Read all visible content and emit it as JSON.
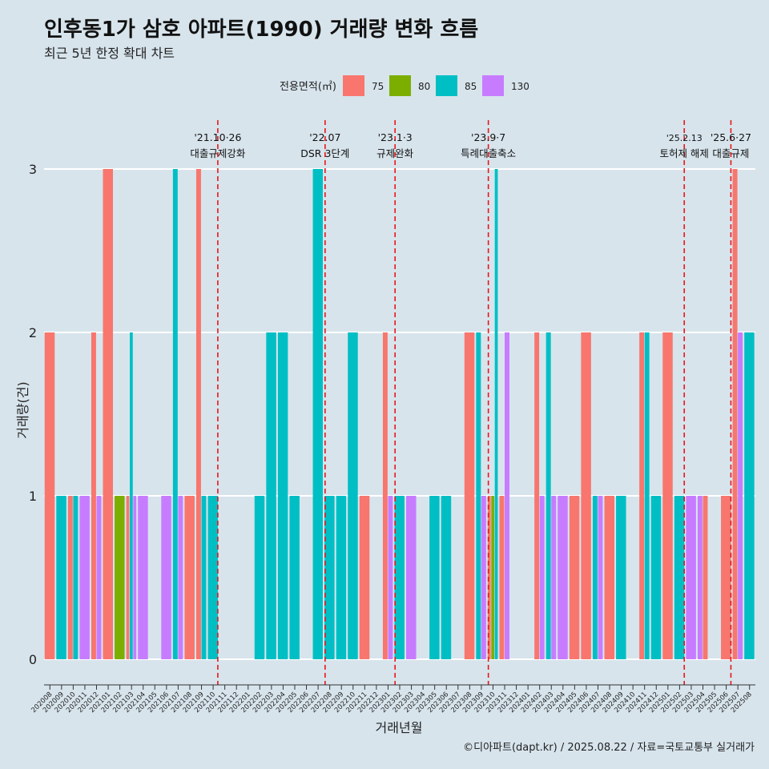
{
  "chart_data": {
    "type": "bar",
    "title": "인후동1가 삼호 아파트(1990) 거래량 변화 흐름",
    "subtitle": "최근 5년 한정 확대 차트",
    "xlabel": "거래년월",
    "ylabel": "거래량(건)",
    "ylim": [
      0,
      3
    ],
    "yticks": [
      0,
      1,
      2,
      3
    ],
    "grid": true,
    "legend": {
      "title": "전용면적(㎡)",
      "position": "top"
    },
    "caption": "©디아파트(dapt.kr) / 2025.08.22 / 자료=국토교통부 실거래가",
    "series": [
      {
        "name": "75",
        "color": "#f8766d"
      },
      {
        "name": "80",
        "color": "#7cae00"
      },
      {
        "name": "85",
        "color": "#00bfc4"
      },
      {
        "name": "130",
        "color": "#c77cff"
      }
    ],
    "categories": [
      "202008",
      "202009",
      "202010",
      "202011",
      "202012",
      "202101",
      "202102",
      "202103",
      "202104",
      "202105",
      "202106",
      "202107",
      "202108",
      "202109",
      "202110",
      "202111",
      "202112",
      "202201",
      "202202",
      "202203",
      "202204",
      "202205",
      "202206",
      "202207",
      "202208",
      "202209",
      "202210",
      "202211",
      "202212",
      "202301",
      "202302",
      "202303",
      "202304",
      "202305",
      "202306",
      "202307",
      "202308",
      "202309",
      "202310",
      "202311",
      "202312",
      "202401",
      "202402",
      "202403",
      "202404",
      "202405",
      "202406",
      "202407",
      "202408",
      "202409",
      "202410",
      "202411",
      "202412",
      "202501",
      "202502",
      "202503",
      "202504",
      "202505",
      "202506",
      "202507",
      "202508"
    ],
    "data": {
      "202008": [
        {
          "area": "75",
          "count": 2
        }
      ],
      "202009": [
        {
          "area": "85",
          "count": 1
        }
      ],
      "202010": [
        {
          "area": "75",
          "count": 1
        },
        {
          "area": "85",
          "count": 1
        }
      ],
      "202011": [
        {
          "area": "130",
          "count": 1
        }
      ],
      "202012": [
        {
          "area": "75",
          "count": 2
        },
        {
          "area": "130",
          "count": 1
        }
      ],
      "202101": [
        {
          "area": "75",
          "count": 3
        }
      ],
      "202102": [
        {
          "area": "80",
          "count": 1
        }
      ],
      "202103": [
        {
          "area": "75",
          "count": 1
        },
        {
          "area": "85",
          "count": 2
        },
        {
          "area": "130",
          "count": 1
        }
      ],
      "202104": [
        {
          "area": "130",
          "count": 1
        }
      ],
      "202106": [
        {
          "area": "130",
          "count": 1
        }
      ],
      "202107": [
        {
          "area": "85",
          "count": 3
        },
        {
          "area": "130",
          "count": 1
        }
      ],
      "202108": [
        {
          "area": "75",
          "count": 1
        }
      ],
      "202109": [
        {
          "area": "75",
          "count": 3
        },
        {
          "area": "85",
          "count": 1
        }
      ],
      "202110": [
        {
          "area": "85",
          "count": 1
        }
      ],
      "202202": [
        {
          "area": "85",
          "count": 1
        }
      ],
      "202203": [
        {
          "area": "85",
          "count": 2
        }
      ],
      "202204": [
        {
          "area": "85",
          "count": 2
        }
      ],
      "202205": [
        {
          "area": "85",
          "count": 1
        }
      ],
      "202207": [
        {
          "area": "85",
          "count": 3
        }
      ],
      "202208": [
        {
          "area": "85",
          "count": 1
        }
      ],
      "202209": [
        {
          "area": "85",
          "count": 1
        }
      ],
      "202210": [
        {
          "area": "85",
          "count": 2
        }
      ],
      "202211": [
        {
          "area": "75",
          "count": 1
        }
      ],
      "202301": [
        {
          "area": "75",
          "count": 2
        },
        {
          "area": "130",
          "count": 1
        }
      ],
      "202302": [
        {
          "area": "85",
          "count": 1
        }
      ],
      "202303": [
        {
          "area": "130",
          "count": 1
        }
      ],
      "202305": [
        {
          "area": "85",
          "count": 1
        }
      ],
      "202306": [
        {
          "area": "85",
          "count": 1
        }
      ],
      "202308": [
        {
          "area": "75",
          "count": 2
        }
      ],
      "202309": [
        {
          "area": "85",
          "count": 2
        },
        {
          "area": "130",
          "count": 1
        }
      ],
      "202310": [
        {
          "area": "75",
          "count": 1
        },
        {
          "area": "80",
          "count": 1
        },
        {
          "area": "85",
          "count": 3
        }
      ],
      "202311": [
        {
          "area": "75",
          "count": 1
        },
        {
          "area": "130",
          "count": 2
        }
      ],
      "202402": [
        {
          "area": "75",
          "count": 2
        },
        {
          "area": "130",
          "count": 1
        }
      ],
      "202403": [
        {
          "area": "85",
          "count": 2
        },
        {
          "area": "130",
          "count": 1
        }
      ],
      "202404": [
        {
          "area": "130",
          "count": 1
        }
      ],
      "202405": [
        {
          "area": "75",
          "count": 1
        }
      ],
      "202406": [
        {
          "area": "75",
          "count": 2
        }
      ],
      "202407": [
        {
          "area": "85",
          "count": 1
        },
        {
          "area": "130",
          "count": 1
        }
      ],
      "202408": [
        {
          "area": "75",
          "count": 1
        }
      ],
      "202409": [
        {
          "area": "85",
          "count": 1
        }
      ],
      "202411": [
        {
          "area": "75",
          "count": 2
        },
        {
          "area": "85",
          "count": 2
        }
      ],
      "202412": [
        {
          "area": "85",
          "count": 1
        }
      ],
      "202501": [
        {
          "area": "75",
          "count": 2
        }
      ],
      "202502": [
        {
          "area": "85",
          "count": 1
        }
      ],
      "202503": [
        {
          "area": "130",
          "count": 1
        }
      ],
      "202504": [
        {
          "area": "130",
          "count": 1
        },
        {
          "area": "75",
          "count": 1
        }
      ],
      "202506": [
        {
          "area": "75",
          "count": 1
        }
      ],
      "202507": [
        {
          "area": "75",
          "count": 3
        },
        {
          "area": "130",
          "count": 2
        }
      ],
      "202508": [
        {
          "area": "85",
          "count": 2
        }
      ]
    },
    "annotations": [
      {
        "index": 14.4,
        "date": "'21.10·26",
        "label": "대출규제강화"
      },
      {
        "index": 23.6,
        "date": "'22.07",
        "label": "DSR 3단계"
      },
      {
        "index": 29.6,
        "date": "'23.1·3",
        "label": "규제완화"
      },
      {
        "index": 37.6,
        "date": "'23.9·7",
        "label": "특례대출축소"
      },
      {
        "index": 54.4,
        "date": "'25.2.13",
        "label": "토허제 해제"
      },
      {
        "index": 58.4,
        "date": "'25.6·27",
        "label": "대출규제"
      }
    ]
  }
}
